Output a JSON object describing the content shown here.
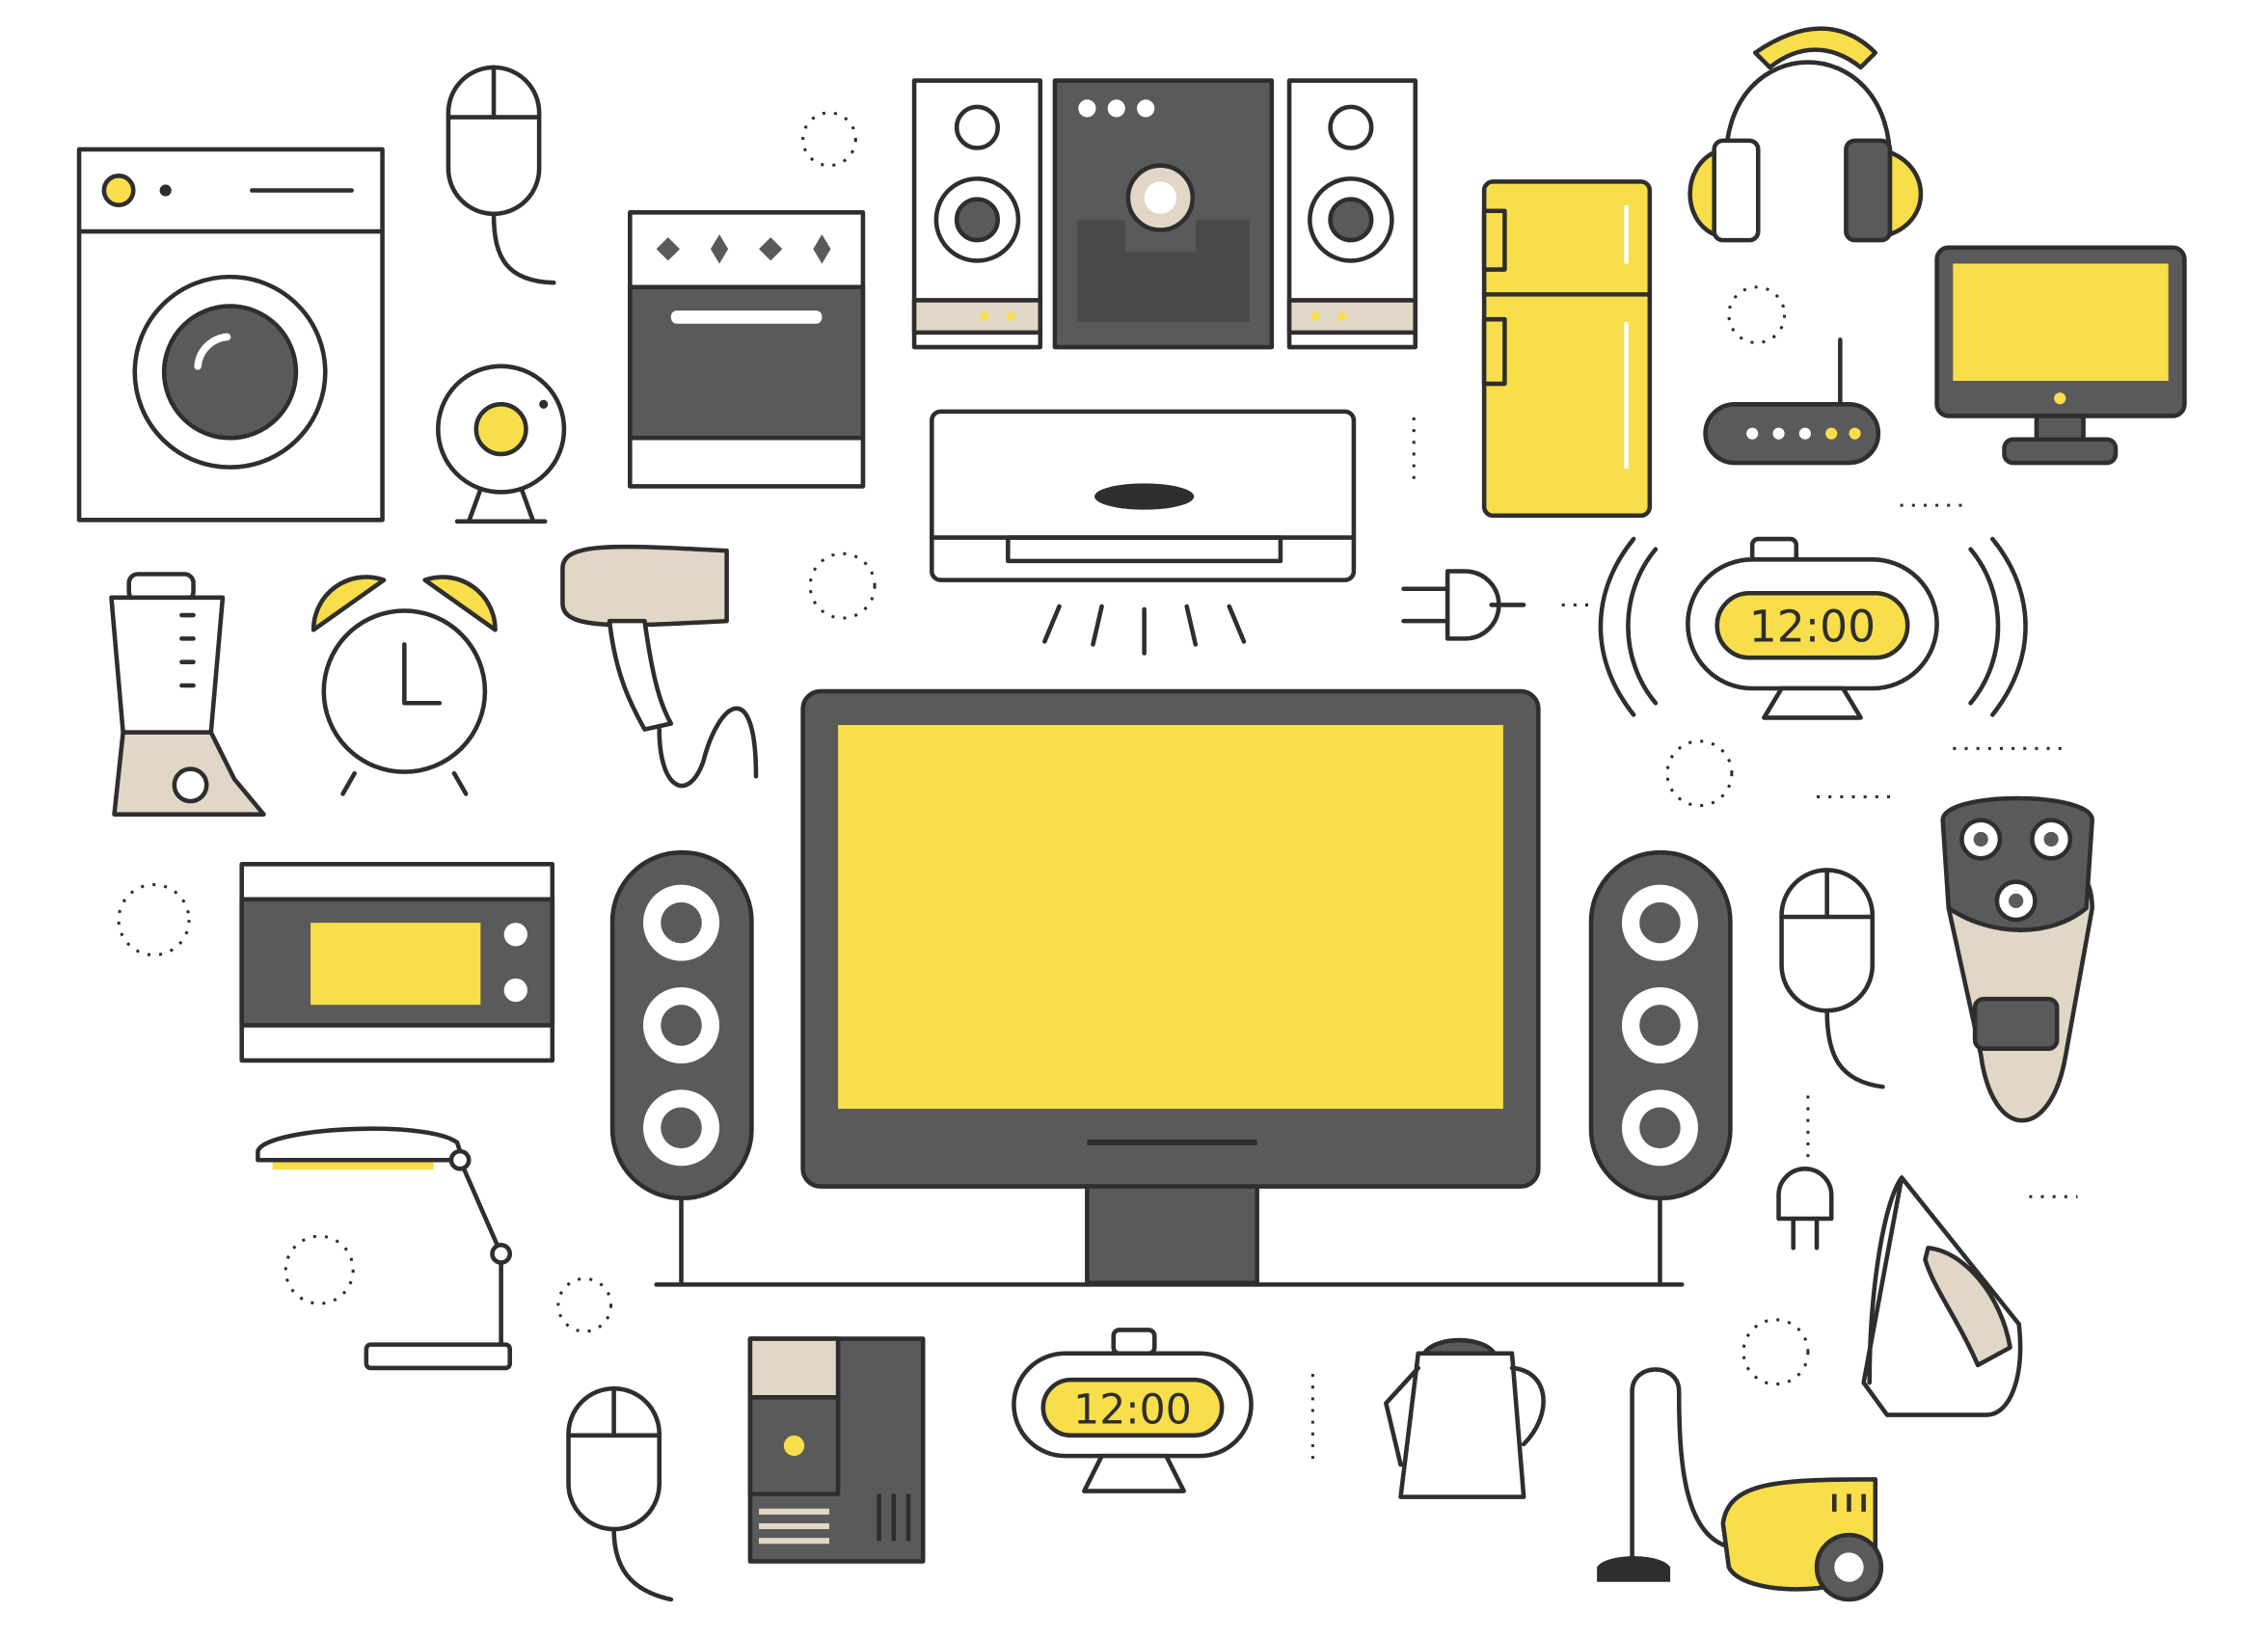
{
  "palette": {
    "yellow": "#F9DE4B",
    "dark": "#5A5A5A",
    "outline": "#2E2E2E",
    "beige": "#E2D7C6",
    "white": "#FFFFFF"
  },
  "clocks": {
    "large_time": "12:00",
    "small_time": "12:00"
  },
  "icons": [
    "washing-machine-icon",
    "computer-mouse-icon",
    "oven-stove-icon",
    "stereo-system-icon",
    "refrigerator-icon",
    "headphones-icon",
    "wifi-router-icon",
    "desktop-monitor-icon",
    "webcam-icon",
    "air-conditioner-icon",
    "power-plug-icon",
    "radio-alarm-clock-icon",
    "blender-icon",
    "alarm-clock-icon",
    "hair-dryer-icon",
    "television-icon",
    "microwave-icon",
    "speaker-icon",
    "electric-shaver-icon",
    "desk-lamp-icon",
    "pc-tower-icon",
    "digital-clock-icon",
    "kettle-icon",
    "vacuum-cleaner-icon",
    "clothes-iron-icon"
  ]
}
